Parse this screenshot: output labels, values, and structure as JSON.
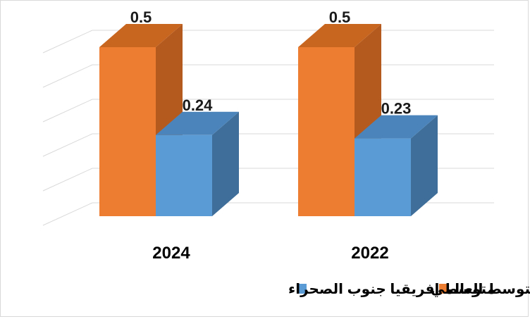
{
  "chart_data": {
    "type": "bar",
    "style": "3d-clustered-column",
    "categories": [
      "2024",
      "2022"
    ],
    "series": [
      {
        "name": "المتوسط العالمي",
        "values": [
          0.5,
          0.5
        ],
        "color": "#ED7D31",
        "side_color": "#B45A1F",
        "top_color": "#C8651F"
      },
      {
        "name": "متوسط افريقيا جنوب الصحراء",
        "values": [
          0.24,
          0.23
        ],
        "color": "#5B9BD5",
        "side_color": "#3E6E99",
        "top_color": "#4A84BB"
      }
    ],
    "data_labels": [
      [
        "0.5",
        "0.5"
      ],
      [
        "0.24",
        "0.23"
      ]
    ],
    "ylim": [
      0,
      0.5
    ],
    "gridlines": true,
    "legend_position": "bottom"
  }
}
